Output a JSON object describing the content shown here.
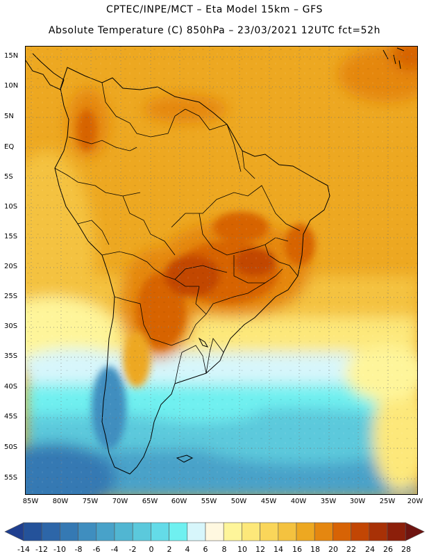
{
  "header": {
    "line1": "CPTEC/INPE/MCT –  Eta Model 15km – GFS",
    "line2": "Absolute Temperature (C) 850hPa – 23/03/2021 12UTC fct=52h"
  },
  "map": {
    "lat_labels": [
      "15N",
      "10N",
      "5N",
      "EQ",
      "5S",
      "10S",
      "15S",
      "20S",
      "25S",
      "30S",
      "35S",
      "40S",
      "45S",
      "50S",
      "55S"
    ],
    "lon_labels": [
      "85W",
      "80W",
      "75W",
      "70W",
      "65W",
      "60W",
      "55W",
      "50W",
      "45W",
      "40W",
      "35W",
      "30W",
      "25W",
      "20W"
    ],
    "land_color": "#000000",
    "grid": "dotted"
  },
  "colorbar": {
    "labels": [
      "-14",
      "-12",
      "-10",
      "-8",
      "-6",
      "-4",
      "-2",
      "0",
      "2",
      "4",
      "6",
      "8",
      "10",
      "12",
      "14",
      "16",
      "18",
      "20",
      "22",
      "24",
      "26",
      "28"
    ],
    "colors": [
      "#1f3f8f",
      "#24529a",
      "#2d66a8",
      "#3579b3",
      "#3f8ebf",
      "#48a2c9",
      "#51b6d2",
      "#5bc9dc",
      "#64dbe8",
      "#6ff0f0",
      "#d7f6fb",
      "#fff8e0",
      "#fef59a",
      "#fde87a",
      "#fad65a",
      "#f4c23f",
      "#eda821",
      "#e58710",
      "#d76305",
      "#c24604",
      "#a83106",
      "#8c1f0a",
      "#6e1410"
    ]
  }
}
